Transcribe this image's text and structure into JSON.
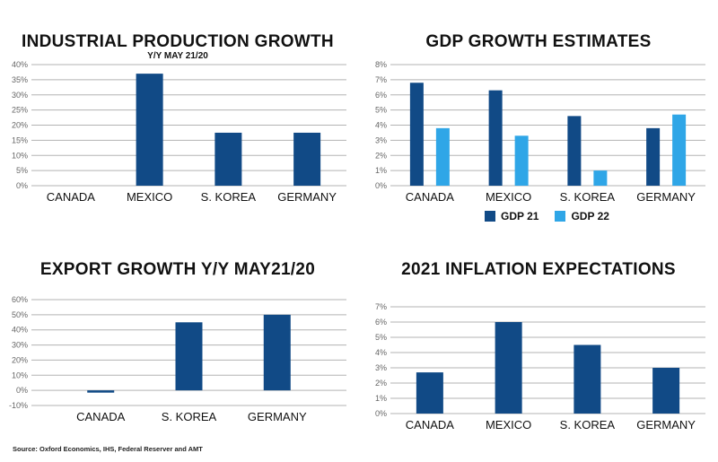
{
  "colors": {
    "dark_blue": "#114a86",
    "light_blue": "#2fa6e7",
    "grid": "#b3b3b3",
    "axis_text": "#666666"
  },
  "source": "Source: Oxford Economics, IHS, Federal Reserver and AMT",
  "chart_data": [
    {
      "type": "bar",
      "title": "INDUSTRIAL PRODUCTION GROWTH",
      "subtitle": "Y/Y MAY 21/20",
      "categories": [
        "CANADA",
        "MEXICO",
        "S. KOREA",
        "GERMANY"
      ],
      "series": [
        {
          "values": [
            0,
            37,
            17.5,
            17.5
          ],
          "color": "#114a86"
        }
      ],
      "ylim": [
        0,
        40
      ],
      "yticks": [
        "0%",
        "5%",
        "10%",
        "15%",
        "20%",
        "25%",
        "30%",
        "35%",
        "40%"
      ],
      "grid": true
    },
    {
      "type": "bar",
      "title": "GDP GROWTH ESTIMATES",
      "categories": [
        "CANADA",
        "MEXICO",
        "S. KOREA",
        "GERMANY"
      ],
      "series": [
        {
          "name": "GDP 21",
          "values": [
            6.8,
            6.3,
            4.6,
            3.8
          ],
          "color": "#114a86"
        },
        {
          "name": "GDP 22",
          "values": [
            3.8,
            3.3,
            1.0,
            4.7
          ],
          "color": "#2fa6e7"
        }
      ],
      "ylim": [
        0,
        8
      ],
      "yticks": [
        "0%",
        "1%",
        "2%",
        "3%",
        "4%",
        "5%",
        "6%",
        "7%",
        "8%"
      ],
      "grid": true,
      "legend": "bottom"
    },
    {
      "type": "bar",
      "title": "EXPORT GROWTH Y/Y MAY21/20",
      "categories": [
        "CANADA",
        "S. KOREA",
        "GERMANY"
      ],
      "series": [
        {
          "values": [
            -1.5,
            45,
            50
          ],
          "color": "#114a86"
        }
      ],
      "ylim": [
        -10,
        60
      ],
      "yticks": [
        "-10%",
        "0%",
        "10%",
        "20%",
        "30%",
        "40%",
        "50%",
        "60%"
      ],
      "grid": true
    },
    {
      "type": "bar",
      "title": "2021 INFLATION EXPECTATIONS",
      "categories": [
        "CANADA",
        "MEXICO",
        "S. KOREA",
        "GERMANY"
      ],
      "series": [
        {
          "values": [
            2.7,
            6.0,
            4.5,
            3.0
          ],
          "color": "#114a86"
        }
      ],
      "ylim": [
        0,
        7
      ],
      "yticks": [
        "0%",
        "1%",
        "2%",
        "3%",
        "4%",
        "5%",
        "6%",
        "7%"
      ],
      "grid": true
    }
  ]
}
